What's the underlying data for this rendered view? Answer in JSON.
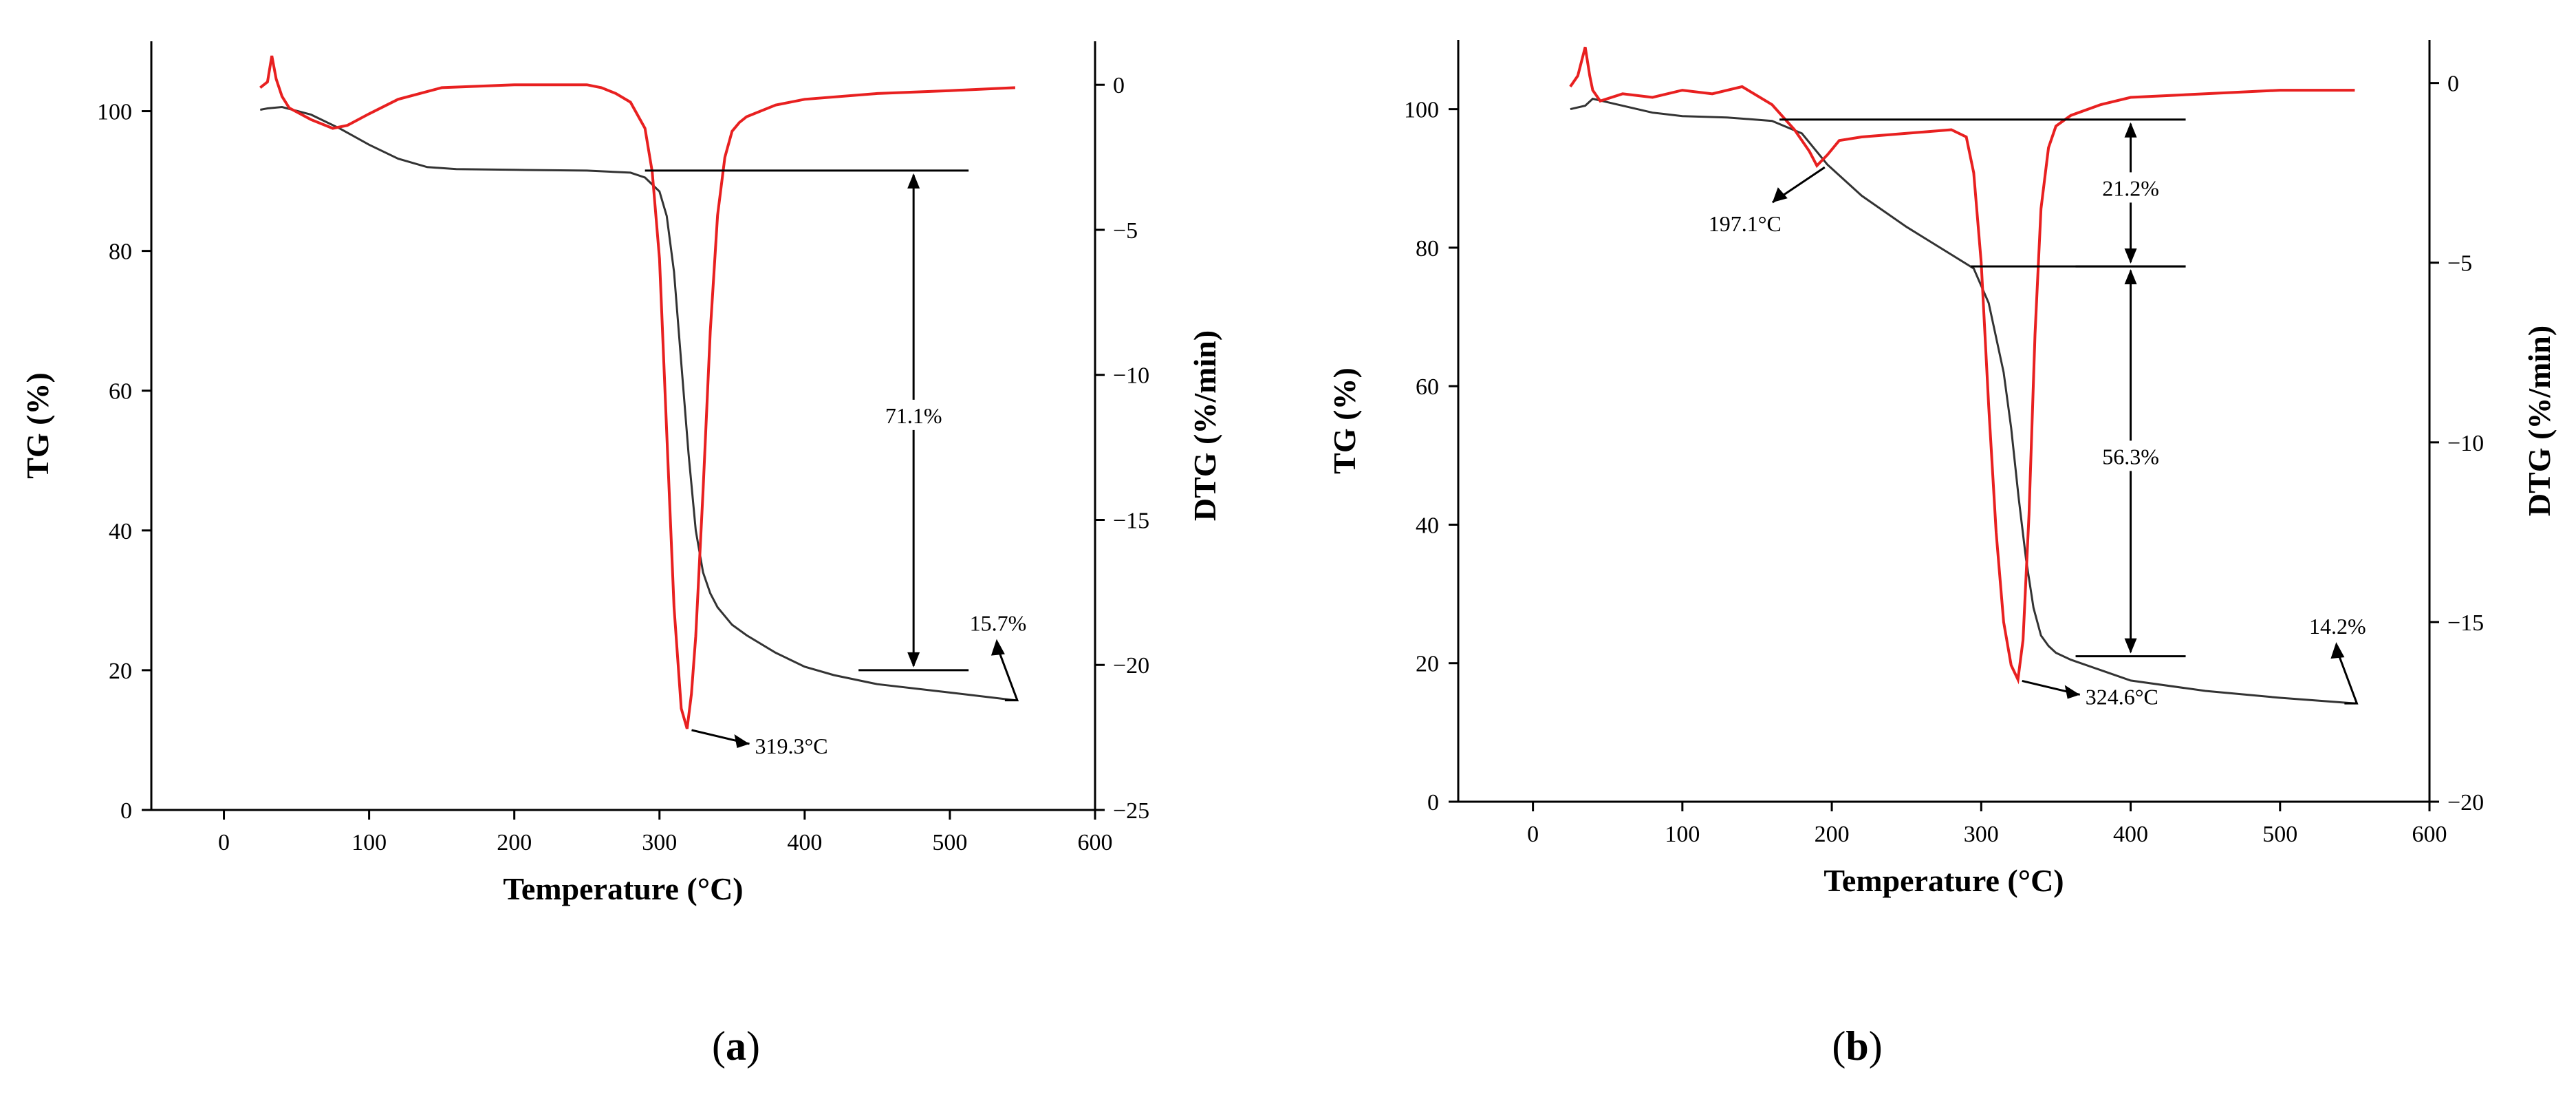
{
  "chart_data": [
    {
      "type": "line",
      "panel_label": "(a)",
      "panel_letter": "a",
      "xlabel": "Temperature (°C)",
      "ylabel_left": "TG (%)",
      "ylabel_right": "DTG (%/min)",
      "xlim": [
        -50,
        600
      ],
      "ylim_left": [
        0,
        110
      ],
      "ylim_right": [
        -25,
        1.5
      ],
      "xticks": [
        0,
        100,
        200,
        300,
        400,
        500,
        600
      ],
      "yticks_left": [
        0,
        20,
        40,
        60,
        80,
        100
      ],
      "yticks_right": [
        -25,
        -20,
        -15,
        -10,
        -5,
        0
      ],
      "series": [
        {
          "name": "TG",
          "axis": "left",
          "color": "#333333",
          "x": [
            25,
            30,
            40,
            60,
            80,
            100,
            120,
            140,
            160,
            200,
            250,
            280,
            290,
            300,
            305,
            310,
            315,
            320,
            325,
            330,
            335,
            340,
            350,
            360,
            380,
            400,
            420,
            450,
            500,
            545
          ],
          "y": [
            100.2,
            100.4,
            100.6,
            99.5,
            97.5,
            95.2,
            93.2,
            92.0,
            91.7,
            91.6,
            91.5,
            91.2,
            90.5,
            88.5,
            85.0,
            77.0,
            64.0,
            51.0,
            40.0,
            34.0,
            31.0,
            29.0,
            26.5,
            25.0,
            22.5,
            20.5,
            19.3,
            18.0,
            16.8,
            15.7
          ]
        },
        {
          "name": "DTG",
          "axis": "right",
          "color": "#e82020",
          "x": [
            25,
            30,
            33,
            36,
            40,
            45,
            60,
            75,
            85,
            100,
            120,
            150,
            200,
            250,
            260,
            270,
            280,
            290,
            295,
            300,
            305,
            310,
            315,
            319,
            322,
            325,
            330,
            335,
            340,
            345,
            350,
            355,
            360,
            380,
            400,
            450,
            500,
            545
          ],
          "y": [
            -0.1,
            0.1,
            1.0,
            0.2,
            -0.4,
            -0.8,
            -1.2,
            -1.5,
            -1.4,
            -1.0,
            -0.5,
            -0.1,
            0.0,
            0.0,
            -0.1,
            -0.3,
            -0.6,
            -1.5,
            -3.0,
            -6.0,
            -12.0,
            -18.0,
            -21.5,
            -22.2,
            -21.0,
            -19.0,
            -14.0,
            -8.5,
            -4.5,
            -2.5,
            -1.6,
            -1.3,
            -1.1,
            -0.7,
            -0.5,
            -0.3,
            -0.2,
            -0.1
          ]
        }
      ],
      "annotations": [
        {
          "text": "71.1%",
          "type": "span",
          "x": 475,
          "y_top": 91.5,
          "y_bottom": 20.0,
          "line_x_start": 290
        },
        {
          "text": "15.7%",
          "type": "end",
          "x": 545,
          "y": 15.7
        },
        {
          "text": "319.3°C",
          "type": "peak",
          "x": 319.3,
          "y_dtg": -22.2
        }
      ]
    },
    {
      "type": "line",
      "panel_label": "(b)",
      "panel_letter": "b",
      "xlabel": "Temperature (°C)",
      "ylabel_left": "TG (%)",
      "ylabel_right": "DTG (%/min)",
      "xlim": [
        -50,
        600
      ],
      "ylim_left": [
        0,
        110
      ],
      "ylim_right": [
        -20,
        1.2
      ],
      "xticks": [
        0,
        100,
        200,
        300,
        400,
        500,
        600
      ],
      "yticks_left": [
        0,
        20,
        40,
        60,
        80,
        100
      ],
      "yticks_right": [
        -20,
        -15,
        -10,
        -5,
        0
      ],
      "series": [
        {
          "name": "TG",
          "axis": "left",
          "color": "#333333",
          "x": [
            25,
            35,
            40,
            50,
            80,
            100,
            130,
            160,
            180,
            197,
            220,
            250,
            280,
            295,
            305,
            315,
            320,
            325,
            330,
            335,
            340,
            345,
            350,
            360,
            380,
            400,
            450,
            500,
            550
          ],
          "y": [
            100.0,
            100.5,
            101.5,
            101.0,
            99.5,
            99.0,
            98.8,
            98.3,
            96.5,
            92.0,
            87.5,
            83.0,
            79.0,
            77.0,
            72.0,
            62.0,
            54.0,
            44.0,
            35.0,
            28.0,
            24.0,
            22.5,
            21.5,
            20.5,
            19.0,
            17.5,
            16.0,
            15.0,
            14.2
          ]
        },
        {
          "name": "DTG",
          "axis": "right",
          "color": "#e82020",
          "x": [
            25,
            30,
            35,
            38,
            40,
            45,
            60,
            80,
            100,
            120,
            140,
            160,
            175,
            185,
            190,
            197,
            205,
            220,
            250,
            280,
            290,
            295,
            300,
            305,
            310,
            315,
            320,
            324.6,
            328,
            332,
            336,
            340,
            345,
            350,
            360,
            380,
            400,
            450,
            500,
            550
          ],
          "y": [
            -0.1,
            0.2,
            1.0,
            0.2,
            -0.2,
            -0.5,
            -0.3,
            -0.4,
            -0.2,
            -0.3,
            -0.1,
            -0.6,
            -1.3,
            -1.9,
            -2.3,
            -2.0,
            -1.6,
            -1.5,
            -1.4,
            -1.3,
            -1.5,
            -2.5,
            -5.0,
            -9.0,
            -12.5,
            -15.0,
            -16.2,
            -16.6,
            -15.5,
            -12.0,
            -7.0,
            -3.5,
            -1.8,
            -1.2,
            -0.9,
            -0.6,
            -0.4,
            -0.3,
            -0.2,
            -0.2
          ]
        }
      ],
      "annotations": [
        {
          "text": "21.2%",
          "type": "span",
          "x": 400,
          "y_top": 98.5,
          "y_bottom": 77.3,
          "line_x_start": 165
        },
        {
          "text": "56.3%",
          "type": "span",
          "x": 400,
          "y_top": 77.3,
          "y_bottom": 21.0,
          "line_x_start": 293
        },
        {
          "text": "14.2%",
          "type": "end",
          "x": 550,
          "y": 14.2
        },
        {
          "text": "197.1°C",
          "type": "point",
          "x": 197.1,
          "y_tg": 92.0
        },
        {
          "text": "324.6°C",
          "type": "peak",
          "x": 324.6,
          "y_dtg": -16.6
        }
      ]
    }
  ]
}
